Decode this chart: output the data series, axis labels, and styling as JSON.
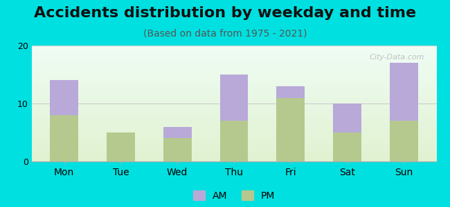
{
  "title": "Accidents distribution by weekday and time",
  "subtitle": "(Based on data from 1975 - 2021)",
  "categories": [
    "Mon",
    "Tue",
    "Wed",
    "Thu",
    "Fri",
    "Sat",
    "Sun"
  ],
  "pm_values": [
    8,
    5,
    4,
    7,
    11,
    5,
    7
  ],
  "am_values": [
    6,
    0,
    2,
    8,
    2,
    5,
    10
  ],
  "am_color": "#b8a9d9",
  "pm_color": "#b5c98e",
  "ylim": [
    0,
    20
  ],
  "yticks": [
    0,
    10,
    20
  ],
  "background_color": "#00e0e0",
  "title_fontsize": 16,
  "subtitle_fontsize": 10,
  "bar_width": 0.5,
  "watermark": "City-Data.com"
}
